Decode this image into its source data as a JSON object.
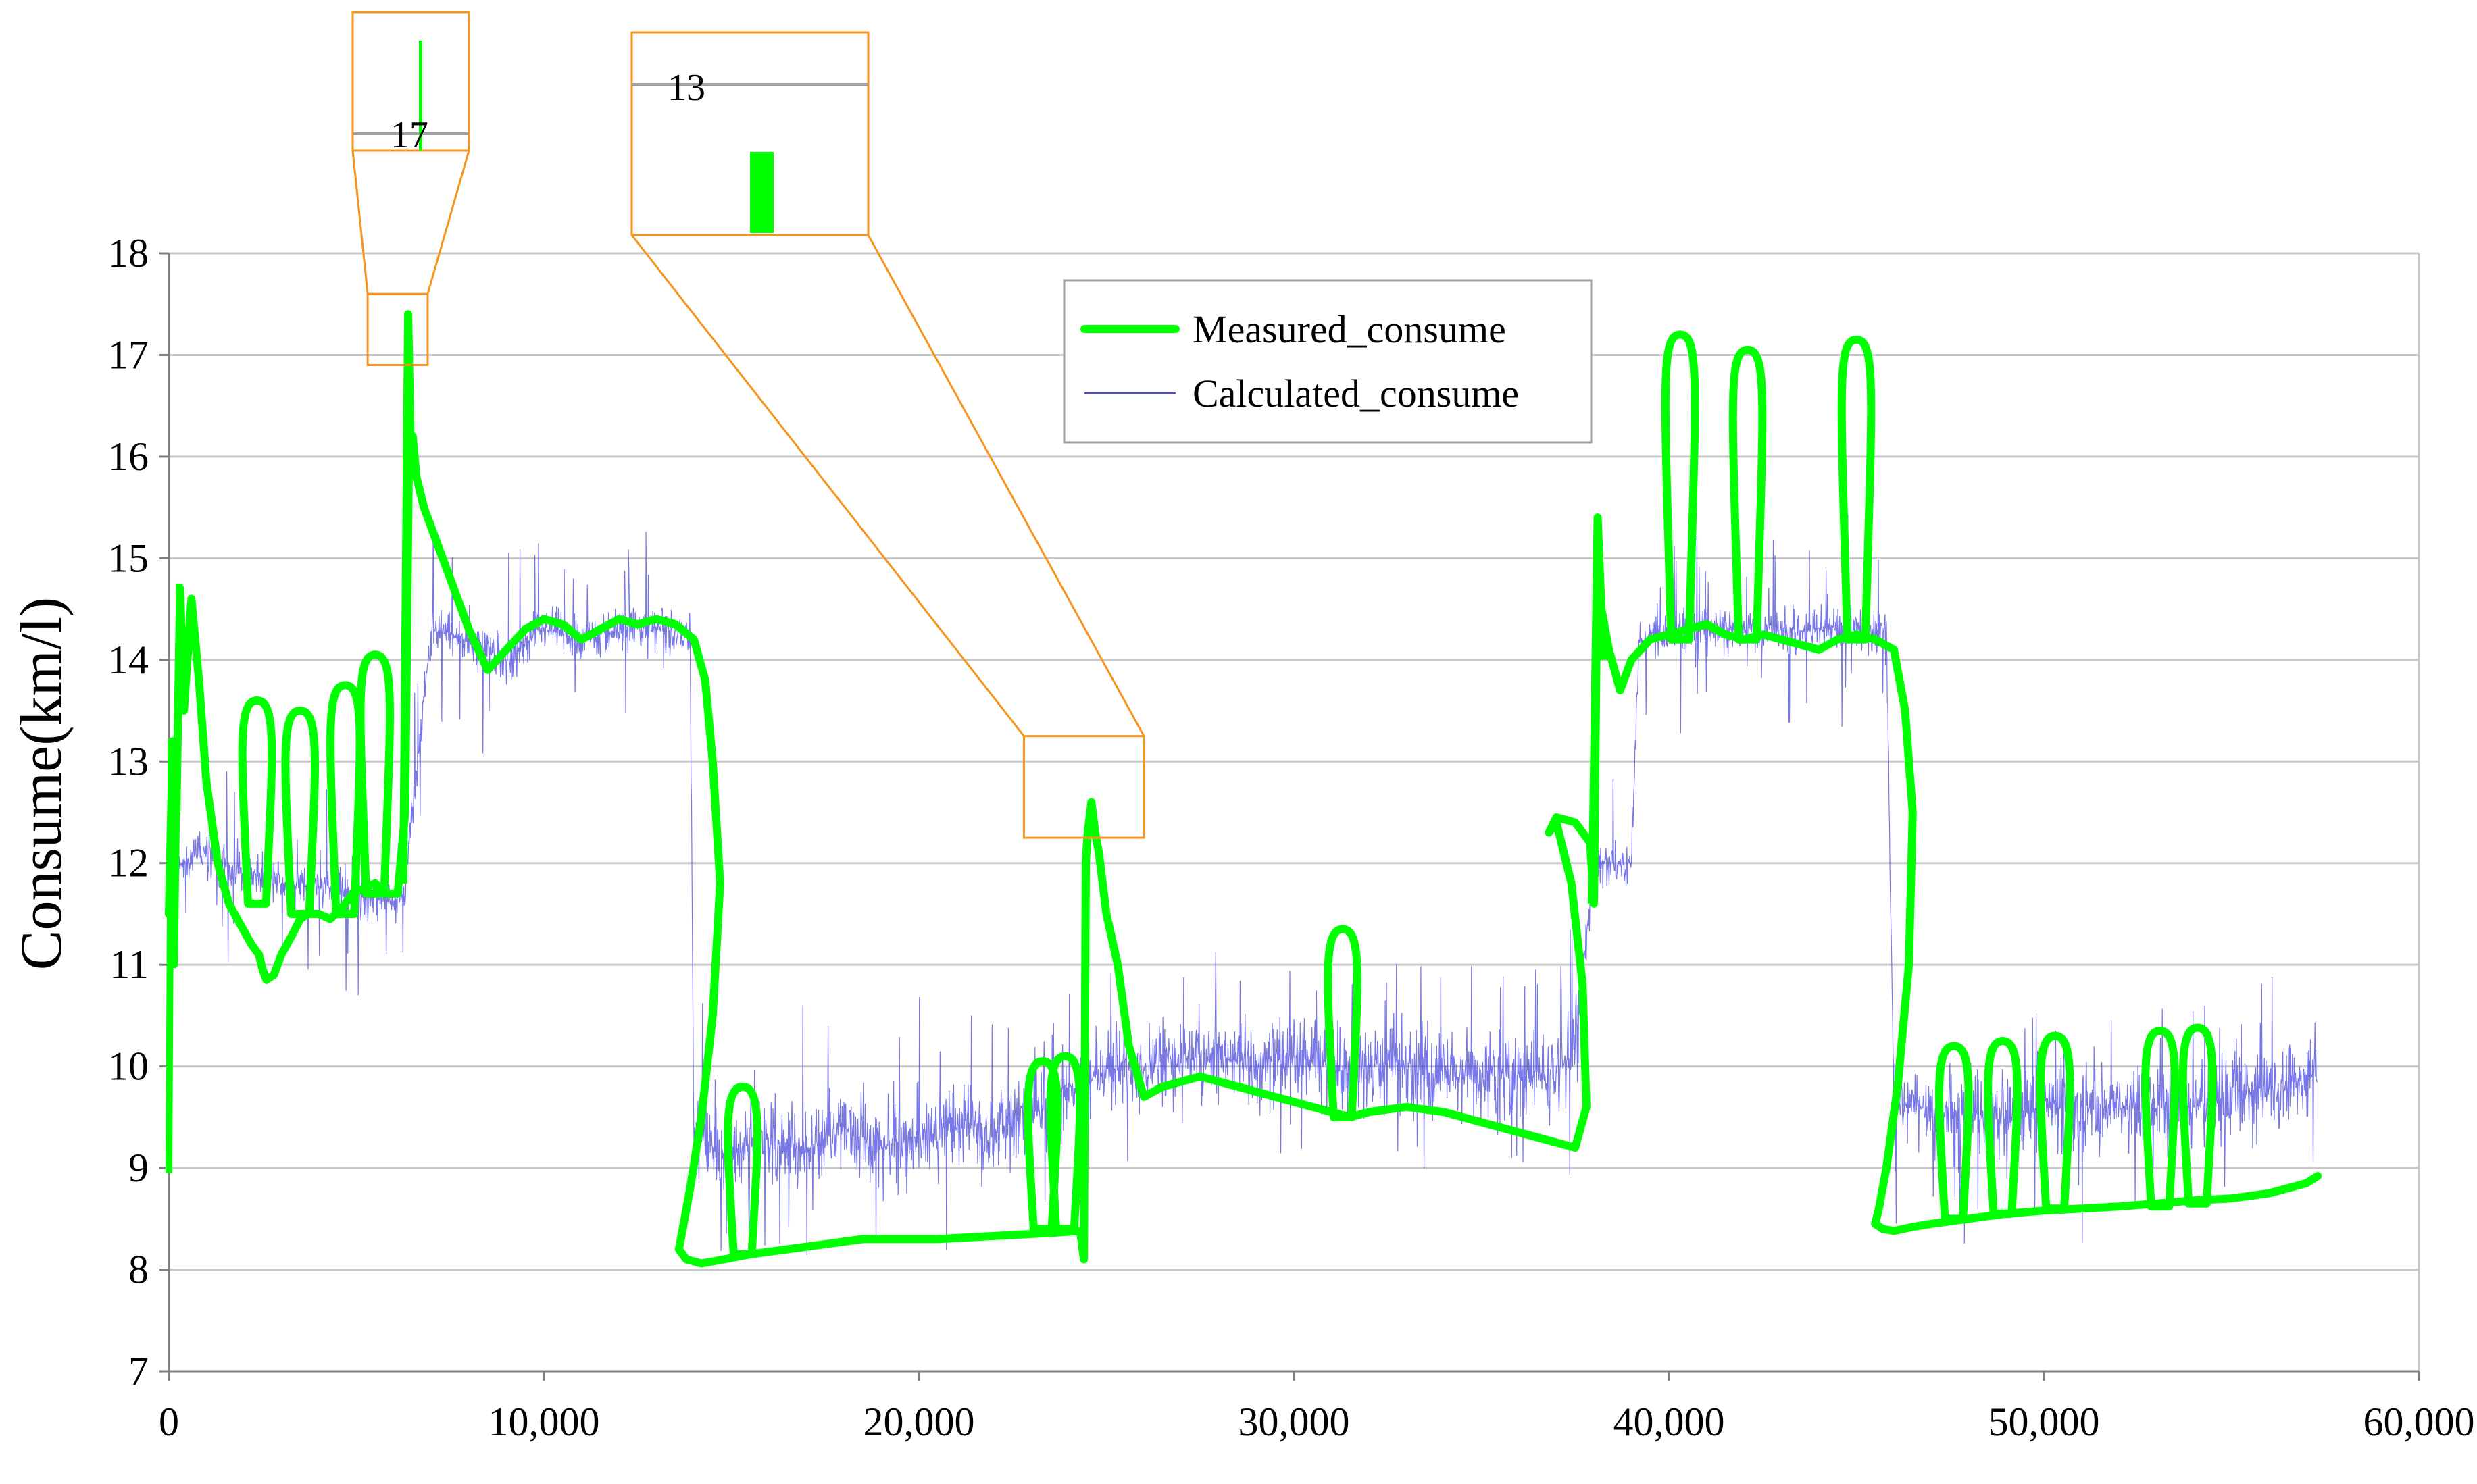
{
  "chart_data": {
    "type": "line",
    "title": "",
    "xlabel": "",
    "ylabel": "Consume(km/l)",
    "xlim": [
      0,
      60000
    ],
    "ylim": [
      7,
      18
    ],
    "x_ticks": [
      0,
      10000,
      20000,
      30000,
      40000,
      50000,
      60000
    ],
    "x_tick_labels": [
      "0",
      "10,000",
      "20,000",
      "30,000",
      "40,000",
      "50,000",
      "60,000"
    ],
    "y_ticks": [
      7,
      8,
      9,
      10,
      11,
      12,
      13,
      14,
      15,
      16,
      17,
      18
    ],
    "y_tick_labels": [
      "7",
      "8",
      "9",
      "10",
      "11",
      "12",
      "13",
      "14",
      "15",
      "16",
      "17",
      "18"
    ],
    "grid": "horizontal",
    "legend_position": "top-center",
    "colors": {
      "measured": "#00ff00",
      "calculated": "#4a4ae0",
      "inset": "#f7941d",
      "grid": "#c8c8c8"
    },
    "series": [
      {
        "name": "Measured_consume",
        "style": "thick-line",
        "x": [
          0,
          100,
          200,
          300,
          400,
          600,
          800,
          1000,
          1300,
          1600,
          1900,
          2200,
          2400,
          2500,
          2600,
          2800,
          3000,
          3300,
          3500,
          3700,
          4000,
          4300,
          4600,
          4900,
          5200,
          5500,
          5800,
          6100,
          6300,
          6400,
          6500,
          6600,
          6800,
          7000,
          7200,
          7500,
          8000,
          8500,
          9000,
          9500,
          10000,
          10500,
          11000,
          11500,
          12000,
          12500,
          13000,
          13500,
          14000,
          14300,
          14500,
          14700,
          14500,
          14200,
          13900,
          13700,
          13600,
          13800,
          14200,
          14800,
          15500,
          16500,
          17500,
          18500,
          19500,
          20500,
          21500,
          22500,
          23500,
          24300,
          24400,
          24450,
          24500,
          24600,
          24700,
          24800,
          25000,
          25300,
          25600,
          26000,
          26500,
          27000,
          27500,
          28000,
          28500,
          29000,
          29500,
          30000,
          30500,
          31000,
          31500,
          32000,
          33000,
          34000,
          35000,
          36000,
          37000,
          37500,
          37800,
          37700,
          37400,
          37000,
          36800,
          37000,
          37500,
          37900,
          38000,
          38100,
          38200,
          38400,
          38700,
          39000,
          39500,
          40000,
          40500,
          41000,
          41500,
          42000,
          42500,
          43000,
          43500,
          44000,
          44500,
          45000,
          45500,
          46000,
          46300,
          46500,
          46400,
          46100,
          45800,
          45600,
          45500,
          45700,
          46000,
          46500,
          47000,
          48000,
          49000,
          50000,
          51000,
          52000,
          53000,
          54000,
          55000,
          56000,
          57000,
          57300
        ],
        "y": [
          11.5,
          13.2,
          12.5,
          14.7,
          13.5,
          14.6,
          13.8,
          12.8,
          12.0,
          11.6,
          11.4,
          11.2,
          11.1,
          10.95,
          10.85,
          10.9,
          11.1,
          11.3,
          11.45,
          11.5,
          11.5,
          11.45,
          11.55,
          11.7,
          11.75,
          11.8,
          11.7,
          11.7,
          12.5,
          16.0,
          16.2,
          15.8,
          15.5,
          15.3,
          15.1,
          14.8,
          14.3,
          13.9,
          14.1,
          14.3,
          14.4,
          14.35,
          14.2,
          14.3,
          14.4,
          14.35,
          14.4,
          14.35,
          14.2,
          13.8,
          13.0,
          11.8,
          10.5,
          9.5,
          8.8,
          8.4,
          8.2,
          8.1,
          8.06,
          8.1,
          8.15,
          8.2,
          8.25,
          8.3,
          8.3,
          8.3,
          8.32,
          8.34,
          8.36,
          8.38,
          8.1,
          12.0,
          12.3,
          12.6,
          12.3,
          12.1,
          11.5,
          11.0,
          10.2,
          9.7,
          9.8,
          9.85,
          9.9,
          9.85,
          9.8,
          9.75,
          9.7,
          9.65,
          9.6,
          9.55,
          9.5,
          9.55,
          9.6,
          9.55,
          9.45,
          9.35,
          9.25,
          9.2,
          9.6,
          10.8,
          11.8,
          12.4,
          12.3,
          12.45,
          12.4,
          12.2,
          11.6,
          15.3,
          14.5,
          14.1,
          13.7,
          14.0,
          14.2,
          14.25,
          14.3,
          14.35,
          14.25,
          14.2,
          14.25,
          14.2,
          14.15,
          14.1,
          14.2,
          14.25,
          14.2,
          14.1,
          13.5,
          12.5,
          11.0,
          9.8,
          9.0,
          8.6,
          8.45,
          8.4,
          8.38,
          8.42,
          8.45,
          8.5,
          8.55,
          8.58,
          8.6,
          8.62,
          8.65,
          8.68,
          8.7,
          8.75,
          8.85,
          8.92
        ]
      },
      {
        "name": "Calculated_consume",
        "style": "thin-noisy",
        "x": [
          200,
          1000,
          2000,
          3000,
          4000,
          5000,
          6000,
          6300,
          7000,
          8000,
          9000,
          10000,
          11000,
          12000,
          13000,
          13900,
          14000,
          15000,
          16000,
          17000,
          18000,
          19000,
          20000,
          21000,
          22000,
          23000,
          24000,
          24400,
          25000,
          26000,
          27000,
          28000,
          29000,
          30000,
          31000,
          32000,
          33000,
          34000,
          35000,
          36000,
          37000,
          37500,
          38000,
          38500,
          39000,
          39200,
          40000,
          41000,
          42000,
          43000,
          44000,
          45000,
          45800,
          46000,
          47000,
          48000,
          49000,
          50000,
          51000,
          52000,
          53000,
          54000,
          55000,
          56000,
          57000,
          57300
        ],
        "y": [
          12.0,
          12.1,
          11.9,
          11.8,
          11.8,
          11.7,
          11.6,
          11.8,
          14.3,
          14.2,
          14.0,
          14.3,
          14.2,
          14.3,
          14.3,
          14.2,
          9.3,
          9.2,
          9.3,
          9.2,
          9.4,
          9.2,
          9.3,
          9.4,
          9.4,
          9.5,
          9.8,
          9.8,
          10.0,
          10.0,
          10.1,
          10.1,
          10.0,
          10.1,
          10.0,
          10.0,
          10.0,
          9.9,
          9.9,
          9.9,
          9.9,
          10.2,
          12.0,
          12.0,
          12.0,
          14.2,
          14.3,
          14.3,
          14.3,
          14.3,
          14.3,
          14.3,
          14.3,
          9.6,
          9.6,
          9.5,
          9.5,
          9.6,
          9.6,
          9.6,
          9.6,
          9.6,
          9.7,
          9.8,
          9.9,
          10.0
        ]
      }
    ],
    "insets": [
      {
        "label": "17",
        "source_x_range": [
          5300,
          6900
        ],
        "source_y_range": [
          16.9,
          17.6
        ]
      },
      {
        "label": "13",
        "source_x_range": [
          22800,
          26000
        ],
        "source_y_range": [
          12.25,
          13.25
        ]
      }
    ]
  }
}
